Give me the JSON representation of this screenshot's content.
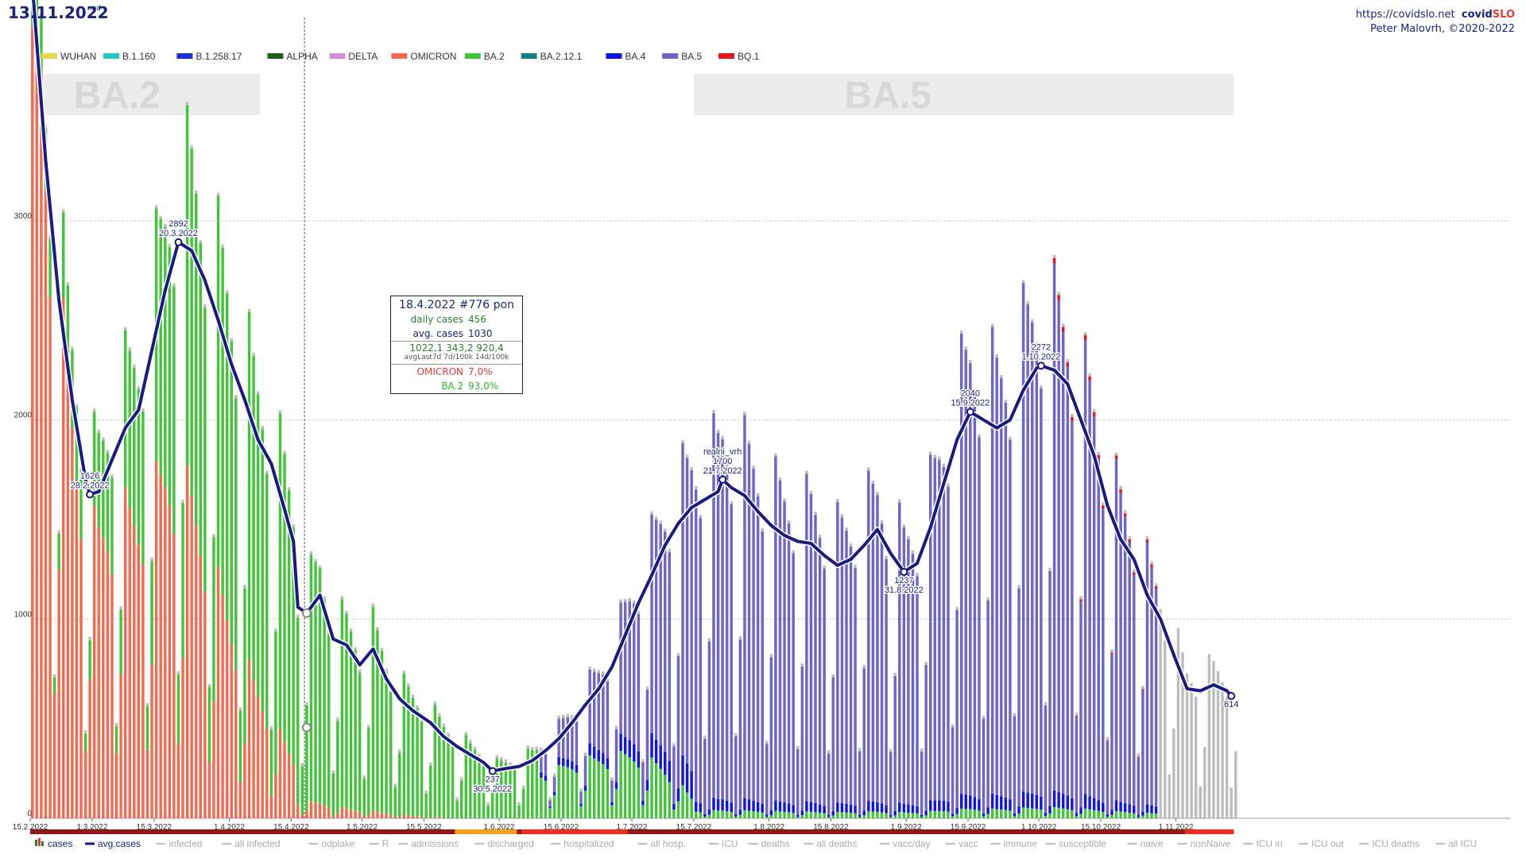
{
  "header": {
    "date": "13.11.2022",
    "weekday": "ned"
  },
  "credits": {
    "url": "https://covidslo.net",
    "brand_a": "covid",
    "brand_b": "SLO",
    "author": "Peter Malovrh, ©2020-2022"
  },
  "colors": {
    "WUHAN": "#e8d84a",
    "B.1.160": "#26c6c6",
    "B.1.258.17": "#1c2fd8",
    "ALPHA": "#1e5e1e",
    "DELTA": "#da8ad8",
    "OMICRON": "#f26b50",
    "BA.2": "#44c43a",
    "BA.2.12.1": "#158080",
    "BA.4": "#1014e8",
    "BA.5": "#7064c8",
    "BQ.1": "#e8141e",
    "unattributed": "#bdbdbd",
    "avg_line": "#1a1a80",
    "grid": "#cccccc",
    "band_bg": "#ececec",
    "band_text": "#d8d8d8"
  },
  "tooltip": {
    "title": "18.4.2022 #776 pon",
    "daily_cases_label": "daily cases",
    "daily_cases_value": "456",
    "avg_cases_label": "avg. cases",
    "avg_cases_value": "1030",
    "avg_values": "1022,1  343,2  920,4",
    "avg_sub": "avgLast7d 7d/100k 14d/100k",
    "omicron_label": "OMICRON",
    "omicron_value": "7,0%",
    "ba2_label": "BA.2",
    "ba2_value": "93,0%"
  },
  "chart_data": {
    "type": "bar",
    "title": "",
    "xlabel": "",
    "ylabel": "",
    "x_range": [
      "15.2.2022",
      "13.11.2022"
    ],
    "ylim": [
      0,
      4100
    ],
    "y_ticks": [
      0,
      1000,
      2000,
      3000
    ],
    "x_tick_labels": [
      "15.2.2022",
      "1.3.2022",
      "15.3.2022",
      "1.4.2022",
      "15.4.2022",
      "1.5.2022",
      "15.5.2022",
      "1.6.2022",
      "15.6.2022",
      "1.7.2022",
      "15.7.2022",
      "1.8.2022",
      "15.8.2022",
      "1.9.2022",
      "15.9.2022",
      "1.10.2022",
      "15.10.2022",
      "1.11.2022"
    ],
    "x_tick_days": [
      0,
      14,
      28,
      45,
      59,
      75,
      89,
      106,
      120,
      136,
      150,
      167,
      181,
      198,
      212,
      228,
      242,
      259
    ],
    "grid": true,
    "legend": [
      "WUHAN",
      "B.1.160",
      "B.1.258.17",
      "ALPHA",
      "DELTA",
      "OMICRON",
      "BA.2",
      "BA.2.12.1",
      "BA.4",
      "BA.5",
      "BQ.1"
    ],
    "legend_placement": "top-left",
    "bottom_legend": [
      "cases",
      "avg.cases",
      "infected",
      "all infected",
      "odplake",
      "R",
      "admissions",
      "discharged",
      "hospitalized",
      "all hosp.",
      "ICU",
      "deaths",
      "all deaths",
      "vacc/day",
      "vacc",
      "immune",
      "susceptible",
      "naive",
      "nonNaive",
      "ICU in",
      "ICU out",
      "ICU deaths",
      "all ICU"
    ],
    "variant_bands": [
      {
        "label": "BA.2",
        "from_day": 0,
        "to_day": 52
      },
      {
        "label": "BA.5",
        "from_day": 150,
        "to_day": 272
      }
    ],
    "annotations": [
      {
        "day": 13,
        "value": 1626,
        "label": "1626",
        "date": "28.2.2022"
      },
      {
        "day": 33,
        "value": 2892,
        "label": "2892",
        "date": "20.3.2022"
      },
      {
        "day": 104,
        "value": 237,
        "label": "237",
        "date": "30.5.2022"
      },
      {
        "day": 156,
        "value": 1700,
        "label": "1700",
        "date": "21.7.2022",
        "prefix": "realni_vrh"
      },
      {
        "day": 197,
        "value": 1237,
        "label": "1237",
        "date": "31.8.2022"
      },
      {
        "day": 212,
        "value": 2040,
        "label": "2040",
        "date": "15.9.2022"
      },
      {
        "day": 228,
        "value": 2272,
        "label": "2272",
        "date": "1.10.2022"
      },
      {
        "day": 271,
        "value": 614,
        "label": "614",
        "date": ""
      }
    ],
    "highlight_day": 62,
    "series": [
      {
        "name": "avg.cases",
        "type": "line",
        "x_days": [
          0,
          3,
          6,
          9,
          12,
          13,
          15,
          18,
          21,
          24,
          27,
          30,
          33,
          36,
          39,
          42,
          45,
          48,
          51,
          54,
          57,
          59,
          60,
          62,
          65,
          68,
          71,
          74,
          77,
          80,
          83,
          86,
          90,
          93,
          96,
          99,
          102,
          104,
          107,
          110,
          113,
          116,
          119,
          122,
          125,
          128,
          131,
          134,
          137,
          140,
          143,
          146,
          149,
          152,
          155,
          156,
          158,
          161,
          164,
          167,
          170,
          173,
          176,
          179,
          182,
          185,
          188,
          191,
          194,
          197,
          200,
          203,
          206,
          209,
          212,
          215,
          218,
          221,
          224,
          227,
          228,
          231,
          234,
          237,
          240,
          243,
          246,
          249,
          252,
          255,
          258,
          261,
          264,
          267,
          270,
          271
        ],
        "values": [
          4200,
          3300,
          2600,
          2100,
          1700,
          1626,
          1640,
          1800,
          1960,
          2050,
          2350,
          2650,
          2892,
          2850,
          2700,
          2500,
          2280,
          2100,
          1900,
          1780,
          1550,
          1390,
          1060,
          1030,
          1120,
          900,
          870,
          770,
          850,
          700,
          600,
          540,
          480,
          410,
          360,
          320,
          280,
          237,
          250,
          260,
          290,
          340,
          400,
          480,
          570,
          650,
          760,
          920,
          1080,
          1220,
          1370,
          1480,
          1560,
          1600,
          1640,
          1700,
          1660,
          1620,
          1540,
          1470,
          1420,
          1390,
          1380,
          1320,
          1270,
          1300,
          1370,
          1450,
          1330,
          1237,
          1280,
          1460,
          1680,
          1900,
          2040,
          2000,
          1960,
          2000,
          2150,
          2260,
          2272,
          2250,
          2180,
          2000,
          1820,
          1570,
          1400,
          1300,
          1120,
          1000,
          820,
          650,
          640,
          670,
          640,
          614
        ]
      }
    ]
  },
  "y_axis_labels": [
    "0",
    "1000",
    "2000",
    "3000"
  ]
}
